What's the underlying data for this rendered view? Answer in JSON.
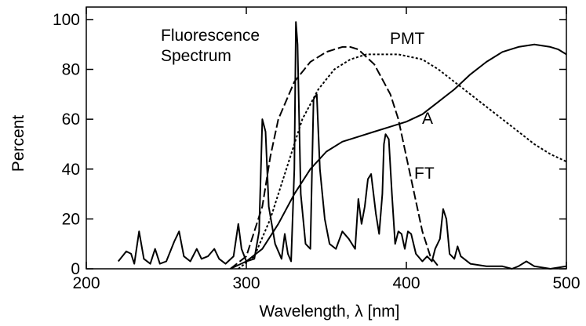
{
  "chart_data": {
    "type": "line",
    "xlabel": "Wavelength, λ [nm]",
    "ylabel": "Percent",
    "xlim": [
      200,
      500
    ],
    "xticks": [
      200,
      300,
      400,
      500
    ],
    "ylim": [
      0,
      105
    ],
    "yticks": [
      0,
      20,
      40,
      60,
      80,
      100
    ],
    "grid": false,
    "series": [
      {
        "name": "Fluorescence Spectrum",
        "color": "#000000",
        "dash": "solid",
        "x": [
          220,
          225,
          228,
          230,
          233,
          236,
          240,
          243,
          246,
          250,
          255,
          258,
          261,
          265,
          269,
          272,
          276,
          280,
          283,
          287,
          292,
          295,
          297,
          300,
          305,
          308,
          310,
          312,
          314,
          318,
          322,
          324,
          326,
          328,
          330,
          331,
          332,
          334,
          337,
          340,
          342,
          344,
          346,
          349,
          352,
          356,
          360,
          364,
          368,
          370,
          372,
          374,
          376,
          378,
          381,
          383,
          385,
          386,
          387,
          389,
          391,
          393,
          395,
          397,
          399,
          401,
          403,
          406,
          410,
          413,
          416,
          418,
          421,
          423,
          425,
          427,
          430,
          432,
          434,
          440,
          450,
          460,
          466,
          470,
          475,
          480,
          490,
          500
        ],
        "values": [
          3,
          7,
          6,
          2,
          15,
          4,
          2,
          8,
          2,
          3,
          11,
          15,
          5,
          3,
          8,
          4,
          5,
          8,
          4,
          2,
          5,
          18,
          8,
          3,
          4,
          15,
          60,
          55,
          25,
          10,
          4,
          14,
          6,
          3,
          40,
          99,
          90,
          30,
          10,
          8,
          68,
          70,
          40,
          20,
          10,
          8,
          15,
          12,
          8,
          28,
          18,
          25,
          36,
          38,
          22,
          14,
          30,
          50,
          54,
          52,
          30,
          10,
          15,
          14,
          8,
          15,
          14,
          6,
          3,
          5,
          3,
          8,
          12,
          24,
          20,
          6,
          4,
          9,
          5,
          2,
          1,
          1,
          0,
          1,
          3,
          1,
          0,
          1
        ]
      },
      {
        "name": "PMT",
        "color": "#000000",
        "dash": "dot",
        "x": [
          295,
          305,
          315,
          325,
          335,
          345,
          355,
          365,
          375,
          385,
          395,
          410,
          420,
          430,
          440,
          450,
          460,
          470,
          480,
          490,
          500
        ],
        "values": [
          0,
          5,
          20,
          40,
          60,
          72,
          80,
          84,
          86,
          86,
          86,
          84,
          80,
          75,
          70,
          65,
          60,
          55,
          50,
          46,
          43
        ]
      },
      {
        "name": "A",
        "color": "#000000",
        "dash": "solid",
        "x": [
          290,
          300,
          310,
          320,
          330,
          340,
          350,
          360,
          370,
          380,
          390,
          400,
          410,
          420,
          430,
          440,
          450,
          460,
          470,
          480,
          490,
          495,
          500
        ],
        "values": [
          0,
          3,
          8,
          18,
          30,
          40,
          47,
          51,
          53,
          55,
          57,
          59,
          62,
          67,
          72,
          78,
          83,
          87,
          89,
          90,
          89,
          88,
          86
        ]
      },
      {
        "name": "FT",
        "color": "#000000",
        "dash": "dash",
        "x": [
          290,
          300,
          310,
          315,
          320,
          330,
          340,
          350,
          360,
          365,
          370,
          380,
          390,
          395,
          400,
          405,
          410,
          415,
          420
        ],
        "values": [
          0,
          5,
          25,
          45,
          60,
          75,
          83,
          87,
          89,
          89,
          88,
          82,
          70,
          60,
          45,
          30,
          15,
          5,
          1
        ]
      }
    ]
  }
}
